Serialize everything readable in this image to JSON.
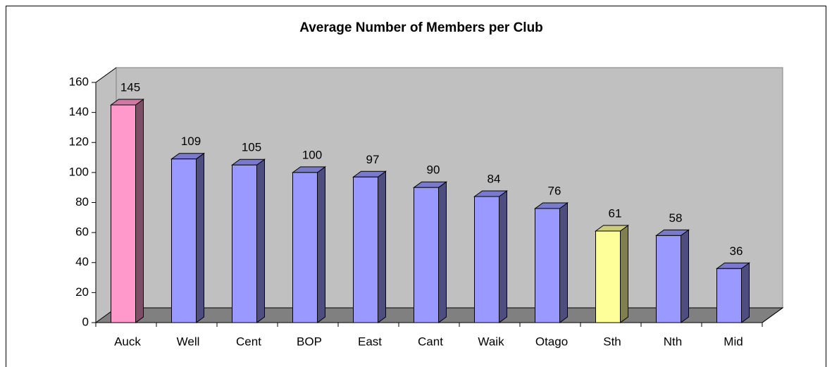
{
  "chart_data": {
    "type": "bar3d",
    "title": "Average Number of Members per Club",
    "categories": [
      "Auck",
      "Well",
      "Cent",
      "BOP",
      "East",
      "Cant",
      "Waik",
      "Otago",
      "Sth",
      "Nth",
      "Mid"
    ],
    "values": [
      145,
      109,
      105,
      100,
      97,
      90,
      84,
      76,
      61,
      58,
      36
    ],
    "colors": [
      "#ff99cc",
      "#9999ff",
      "#9999ff",
      "#9999ff",
      "#9999ff",
      "#9999ff",
      "#9999ff",
      "#9999ff",
      "#ffff99",
      "#9999ff",
      "#9999ff"
    ],
    "ylim": [
      0,
      160
    ],
    "yticks": [
      0,
      20,
      40,
      60,
      80,
      100,
      120,
      140,
      160
    ],
    "grid": false
  }
}
